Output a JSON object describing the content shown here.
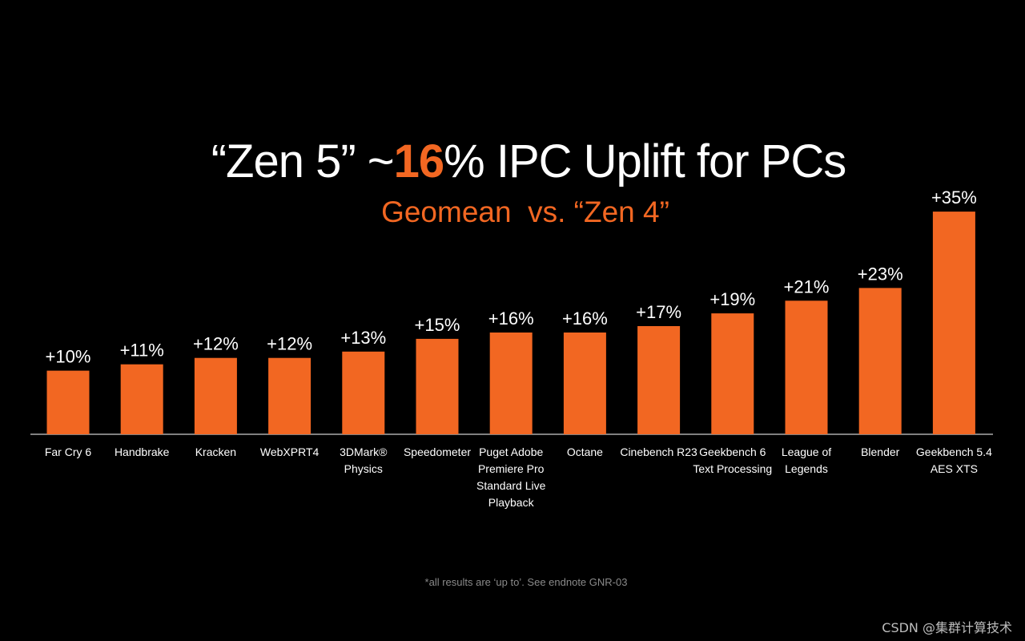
{
  "title": {
    "prefix": "“Zen 5” ~",
    "highlight": "16",
    "suffix": "% IPC Uplift for PCs"
  },
  "subtitle": "Geomean  vs. “Zen 4”",
  "footnote": "*all results are ‘up to’. See endnote GNR-03",
  "watermark": "CSDN @集群计算技术",
  "colors": {
    "background": "#000000",
    "bar": "#f26722",
    "text": "#ffffff",
    "accent": "#f26722"
  },
  "chart_data": {
    "type": "bar",
    "categories": [
      [
        "Far Cry 6"
      ],
      [
        "Handbrake"
      ],
      [
        "Kracken"
      ],
      [
        "WebXPRT4"
      ],
      [
        "3DMark®",
        "Physics"
      ],
      [
        "Speedometer"
      ],
      [
        "Puget Adobe",
        "Premiere Pro",
        "Standard Live",
        "Playback"
      ],
      [
        "Octane"
      ],
      [
        "Cinebench R23"
      ],
      [
        "Geekbench 6",
        "Text Processing"
      ],
      [
        "League of",
        "Legends"
      ],
      [
        "Blender"
      ],
      [
        "Geekbench 5.4",
        "AES XTS"
      ]
    ],
    "values": [
      10,
      11,
      12,
      12,
      13,
      15,
      16,
      16,
      17,
      19,
      21,
      23,
      35
    ],
    "labels": [
      "+10%",
      "+11%",
      "+12%",
      "+12%",
      "+13%",
      "+15%",
      "+16%",
      "+16%",
      "+17%",
      "+19%",
      "+21%",
      "+23%",
      "+35%"
    ],
    "ylim": [
      0,
      35
    ],
    "grid": false,
    "legend": "none"
  }
}
